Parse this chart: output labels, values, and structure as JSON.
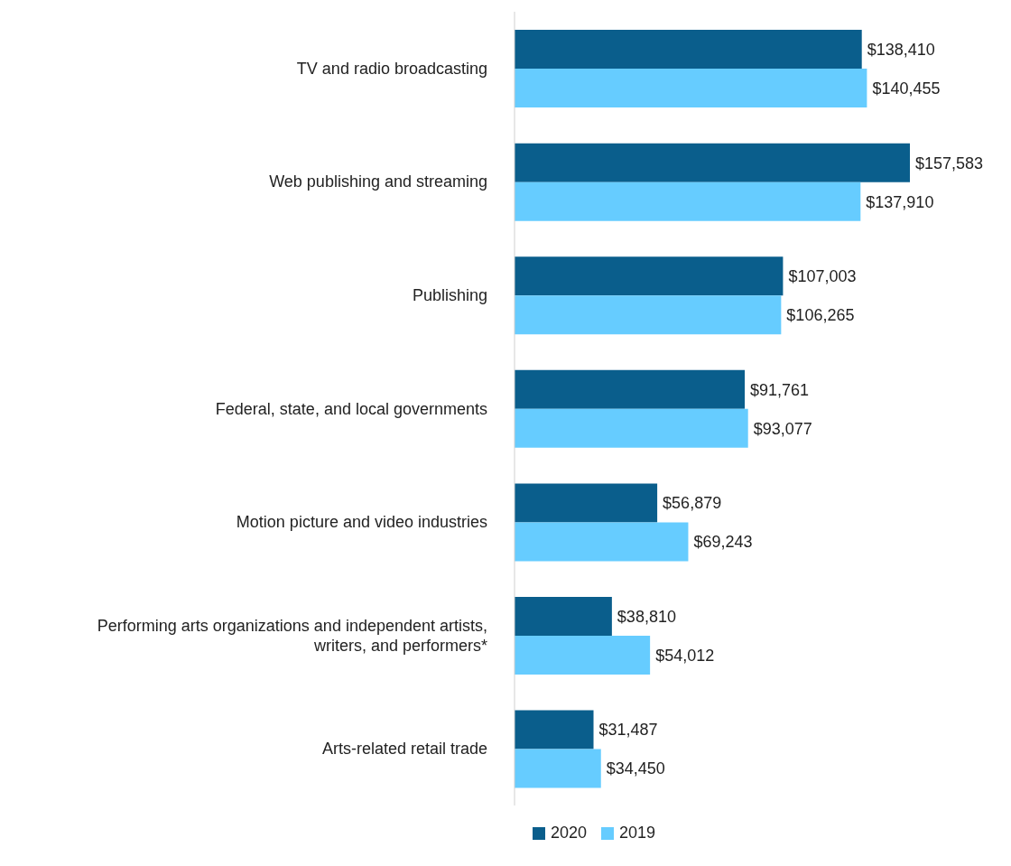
{
  "chart_data": {
    "type": "bar",
    "orientation": "horizontal",
    "categories": [
      "TV and radio broadcasting",
      "Web publishing and streaming",
      "Publishing",
      "Federal, state, and local governments",
      "Motion picture and video industries",
      "Performing arts organizations and independent artists, writers, and performers*",
      "Arts-related retail trade"
    ],
    "series": [
      {
        "name": "2020",
        "color": "#0a5e8c",
        "values": [
          138410,
          157583,
          107003,
          91761,
          56879,
          38810,
          31487
        ],
        "value_labels": [
          "$138,410",
          "$157,583",
          "$107,003",
          "$91,761",
          "$56,879",
          "$38,810",
          "$31,487"
        ]
      },
      {
        "name": "2019",
        "color": "#66ccff",
        "values": [
          140455,
          137910,
          106265,
          93077,
          69243,
          54012,
          34450
        ],
        "value_labels": [
          "$140,455",
          "$137,910",
          "$106,265",
          "$93,077",
          "$69,243",
          "$54,012",
          "$34,450"
        ]
      }
    ],
    "legend": "bottom",
    "grid": false
  }
}
